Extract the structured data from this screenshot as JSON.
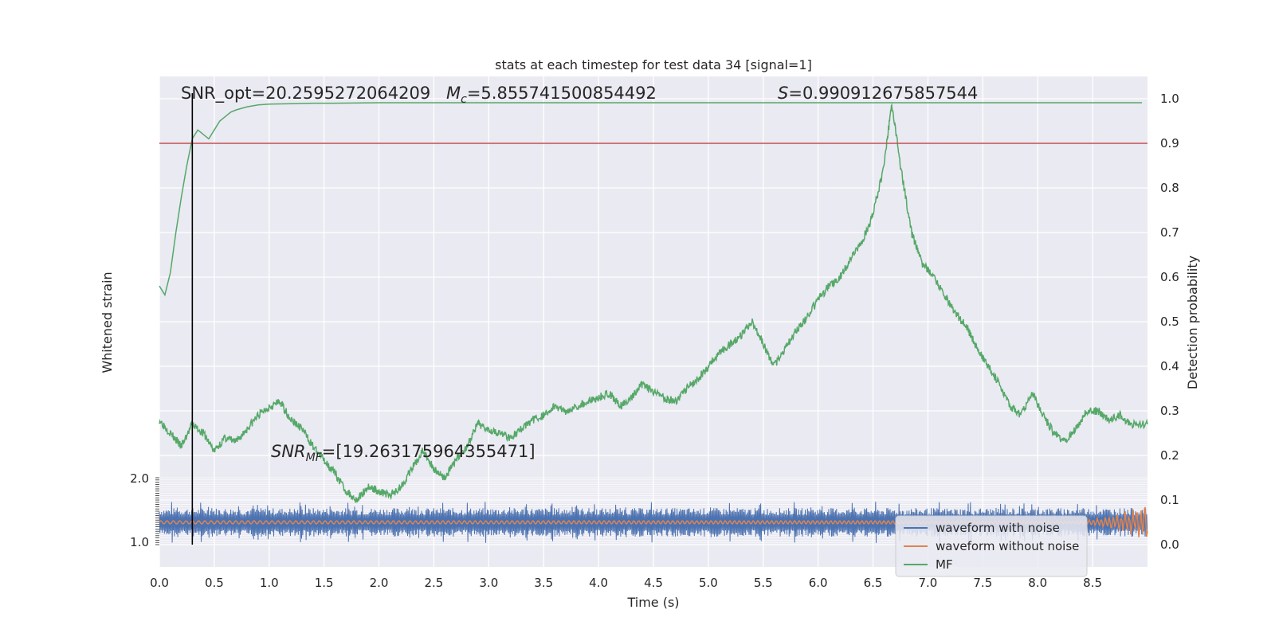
{
  "chart_data": {
    "type": "line",
    "title": "stats at each timestep for test data 34 [signal=1]",
    "xlabel": "Time (s)",
    "ylabel_left": "Whitened strain",
    "ylabel_right": "Detection probability",
    "xlim": [
      0.0,
      9.0
    ],
    "ylim_right": [
      -0.05,
      1.05
    ],
    "x_ticks": [
      "0.0",
      "0.5",
      "1.0",
      "1.5",
      "2.0",
      "2.5",
      "3.0",
      "3.5",
      "4.0",
      "4.5",
      "5.0",
      "5.5",
      "6.0",
      "6.5",
      "7.0",
      "7.5",
      "8.0",
      "8.5"
    ],
    "y_ticks_right": [
      "0.0",
      "0.1",
      "0.2",
      "0.3",
      "0.4",
      "0.5",
      "0.6",
      "0.7",
      "0.8",
      "0.9",
      "1.0"
    ],
    "y_ticks_left_top": "2.0",
    "y_ticks_left_bottom": "1.0",
    "grid": true,
    "legend_position": "lower-right",
    "legend": [
      "waveform with noise",
      "waveform without noise",
      "MF"
    ],
    "colors": {
      "noise": "#4c72b0",
      "clean": "#dd8452",
      "mf": "#55a868",
      "threshold": "#c44e52",
      "marker": "#000000",
      "background": "#eaeaf2"
    },
    "annotations": {
      "snr_opt": "SNR_opt=20.2595272064209",
      "mc_symbol": "M",
      "mc_sub": "c",
      "mc_value": "=5.855741500854492",
      "s_symbol": "S",
      "s_value": "=0.990912675857544",
      "snr_mf_symbol": "SNR",
      "snr_mf_sub": "MF",
      "snr_mf_value": "=[19.263175964355471]"
    },
    "threshold": 0.9,
    "marker_time": 0.3,
    "series": [
      {
        "name": "MF",
        "x": [
          0.0,
          0.1,
          0.2,
          0.3,
          0.4,
          0.5,
          0.6,
          0.7,
          0.8,
          0.9,
          1.0,
          1.1,
          1.2,
          1.3,
          1.4,
          1.5,
          1.6,
          1.7,
          1.8,
          1.9,
          2.0,
          2.1,
          2.2,
          2.3,
          2.4,
          2.5,
          2.6,
          2.7,
          2.8,
          2.9,
          3.0,
          3.1,
          3.2,
          3.3,
          3.4,
          3.5,
          3.6,
          3.7,
          3.8,
          3.9,
          4.0,
          4.1,
          4.2,
          4.3,
          4.4,
          4.5,
          4.6,
          4.7,
          4.8,
          4.9,
          5.0,
          5.1,
          5.2,
          5.3,
          5.4,
          5.5,
          5.6,
          5.7,
          5.8,
          5.9,
          6.0,
          6.1,
          6.2,
          6.3,
          6.4,
          6.5,
          6.6,
          6.67,
          6.75,
          6.85,
          6.95,
          7.05,
          7.15,
          7.25,
          7.35,
          7.45,
          7.55,
          7.65,
          7.75,
          7.85,
          7.95,
          8.05,
          8.15,
          8.25,
          8.35,
          8.45,
          8.55,
          8.65,
          8.75,
          8.85,
          9.0
        ],
        "values": [
          0.28,
          0.25,
          0.22,
          0.27,
          0.25,
          0.21,
          0.24,
          0.23,
          0.26,
          0.29,
          0.31,
          0.32,
          0.28,
          0.26,
          0.22,
          0.19,
          0.16,
          0.12,
          0.1,
          0.13,
          0.12,
          0.11,
          0.13,
          0.17,
          0.21,
          0.17,
          0.15,
          0.19,
          0.22,
          0.27,
          0.26,
          0.25,
          0.24,
          0.26,
          0.28,
          0.29,
          0.31,
          0.3,
          0.31,
          0.32,
          0.33,
          0.34,
          0.31,
          0.33,
          0.36,
          0.34,
          0.33,
          0.32,
          0.35,
          0.37,
          0.4,
          0.43,
          0.45,
          0.47,
          0.5,
          0.45,
          0.4,
          0.44,
          0.48,
          0.51,
          0.55,
          0.58,
          0.6,
          0.64,
          0.68,
          0.74,
          0.85,
          0.99,
          0.85,
          0.7,
          0.63,
          0.6,
          0.56,
          0.52,
          0.49,
          0.44,
          0.4,
          0.36,
          0.31,
          0.29,
          0.34,
          0.29,
          0.25,
          0.23,
          0.26,
          0.3,
          0.3,
          0.28,
          0.29,
          0.27,
          0.27
        ]
      },
      {
        "name": "MF",
        "x": [
          0.0,
          0.05,
          0.1,
          0.15,
          0.2,
          0.25,
          0.3,
          0.35,
          0.4,
          0.45,
          0.5,
          0.55,
          0.6,
          0.65,
          0.7,
          0.8,
          0.9,
          1.0,
          1.2,
          1.4,
          1.6,
          2.0,
          3.0,
          4.0,
          5.0,
          6.0,
          7.0,
          8.0,
          8.95
        ],
        "values": [
          0.58,
          0.56,
          0.61,
          0.7,
          0.78,
          0.85,
          0.91,
          0.93,
          0.92,
          0.91,
          0.93,
          0.95,
          0.96,
          0.97,
          0.975,
          0.982,
          0.986,
          0.988,
          0.989,
          0.99,
          0.99,
          0.991,
          0.991,
          0.991,
          0.991,
          0.991,
          0.991,
          0.991,
          0.991
        ]
      }
    ]
  }
}
